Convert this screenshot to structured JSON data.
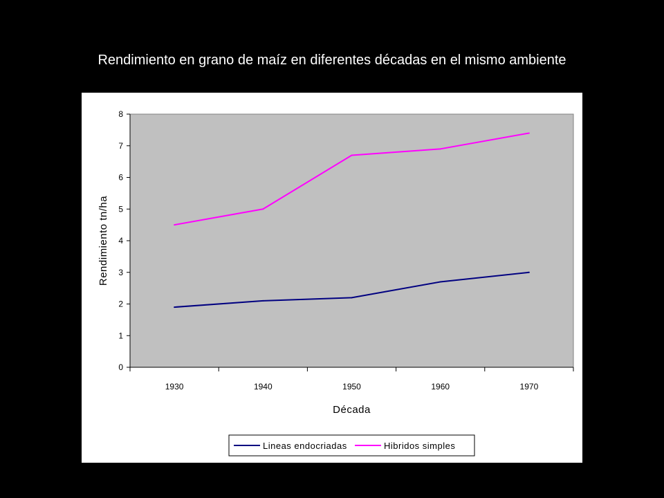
{
  "slide": {
    "title": "Rendimiento en grano de maíz en diferentes décadas en el mismo ambiente"
  },
  "chart_data": {
    "type": "line",
    "title": "",
    "xlabel": "Década",
    "ylabel": "Rendimiento tn/ha",
    "categories": [
      "1930",
      "1940",
      "1950",
      "1960",
      "1970"
    ],
    "ylim": [
      0,
      8
    ],
    "yticks": [
      "0",
      "1",
      "2",
      "3",
      "4",
      "5",
      "6",
      "7",
      "8"
    ],
    "grid": false,
    "legend_position": "bottom",
    "plot_background": "#c0c0c0",
    "series": [
      {
        "name": "Lineas endocriadas",
        "values": [
          1.9,
          2.1,
          2.2,
          2.7,
          3.0
        ],
        "color": "#000080"
      },
      {
        "name": "Hibridos simples",
        "values": [
          4.5,
          5.0,
          6.7,
          6.9,
          7.4
        ],
        "color": "#ff00ff"
      }
    ]
  }
}
